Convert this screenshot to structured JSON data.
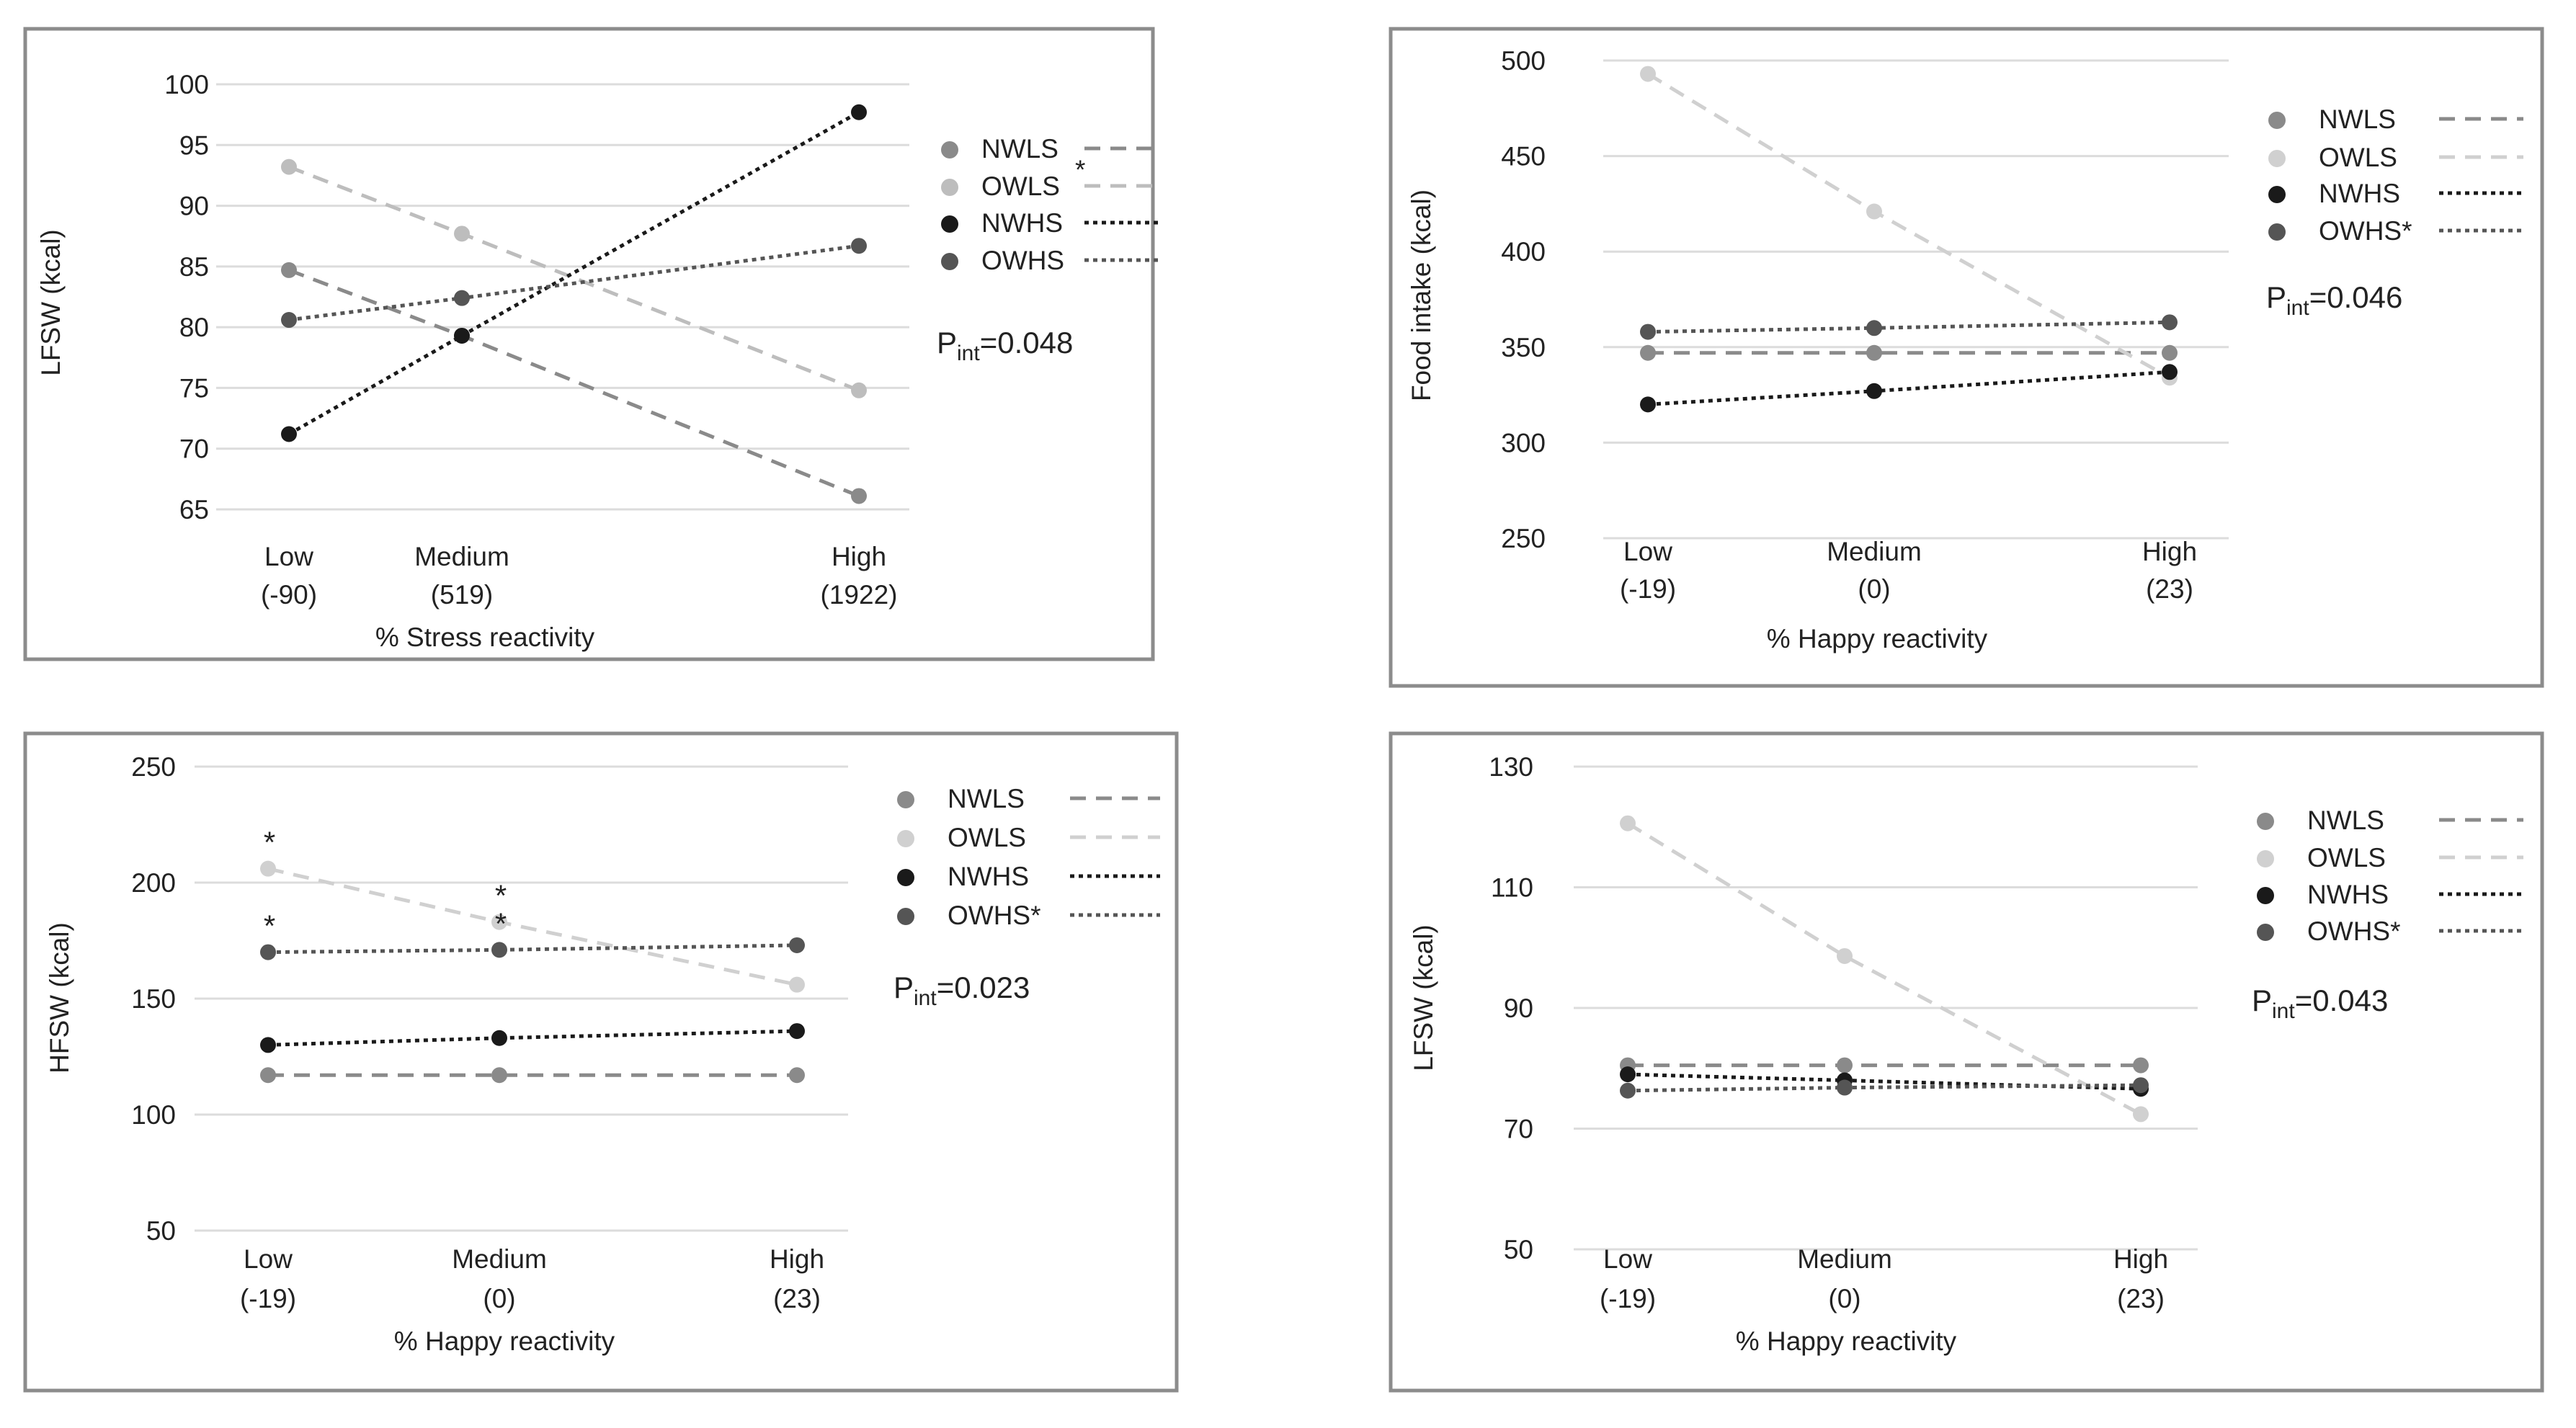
{
  "chart_data": [
    {
      "type": "line",
      "ylabel": "LFSW (kcal)",
      "xlabel": "% Stress reactivity",
      "yticks": [
        "100",
        "95",
        "90",
        "85",
        "80",
        "75",
        "70",
        "65"
      ],
      "ylim": [
        65,
        100
      ],
      "categories": [
        {
          "name": "Low",
          "value": "(-90)"
        },
        {
          "name": "Medium",
          "value": "(519)"
        },
        {
          "name": "High",
          "value": "(1922)"
        }
      ],
      "series": [
        {
          "name": "NWLS",
          "legend_label": "NWLS",
          "values": [
            84.7,
            79.3,
            66.1
          ],
          "color": "#8a8a8a",
          "dash": "dashed"
        },
        {
          "name": "OWLS",
          "legend_label": "OWLS",
          "values": [
            93.2,
            87.7,
            74.8
          ],
          "color": "#bdbdbd",
          "dash": "dashed"
        },
        {
          "name": "NWHS",
          "legend_label": "NWHS",
          "values": [
            71.2,
            79.3,
            97.7
          ],
          "color": "#1a1a1a",
          "dash": "dotted"
        },
        {
          "name": "OWHS",
          "legend_label": "OWHS",
          "values": [
            80.6,
            82.4,
            86.7
          ],
          "color": "#555555",
          "dash": "dotted"
        }
      ],
      "legend_star": "*",
      "p_label": "P",
      "p_sub": "int",
      "p_value": "=0.048",
      "annotations": []
    },
    {
      "type": "line",
      "ylabel": "Food intake (kcal)",
      "xlabel": "% Happy reactivity",
      "yticks": [
        "500",
        "450",
        "400",
        "350",
        "300",
        "250"
      ],
      "ylim": [
        250,
        500
      ],
      "categories": [
        {
          "name": "Low",
          "value": "(-19)"
        },
        {
          "name": "Medium",
          "value": "(0)"
        },
        {
          "name": "High",
          "value": "(23)"
        }
      ],
      "series": [
        {
          "name": "NWLS",
          "legend_label": "NWLS",
          "values": [
            347,
            347,
            347
          ],
          "color": "#8a8a8a",
          "dash": "dashed"
        },
        {
          "name": "OWLS",
          "legend_label": "OWLS",
          "values": [
            493,
            421,
            334
          ],
          "color": "#d0d0d0",
          "dash": "dashed"
        },
        {
          "name": "NWHS",
          "legend_label": "NWHS",
          "values": [
            320,
            327,
            337
          ],
          "color": "#1a1a1a",
          "dash": "dotted"
        },
        {
          "name": "OWHS",
          "legend_label": "OWHS*",
          "values": [
            358,
            360,
            363
          ],
          "color": "#555555",
          "dash": "dotted"
        }
      ],
      "legend_star": "",
      "p_label": "P",
      "p_sub": "int",
      "p_value": "=0.046",
      "annotations": []
    },
    {
      "type": "line",
      "ylabel": "HFSW (kcal)",
      "xlabel": "% Happy reactivity",
      "yticks": [
        "250",
        "200",
        "150",
        "100",
        "50"
      ],
      "ylim": [
        50,
        250
      ],
      "categories": [
        {
          "name": "Low",
          "value": "(-19)"
        },
        {
          "name": "Medium",
          "value": "(0)"
        },
        {
          "name": "High",
          "value": "(23)"
        }
      ],
      "series": [
        {
          "name": "NWLS",
          "legend_label": "NWLS",
          "values": [
            117,
            117,
            117
          ],
          "color": "#8a8a8a",
          "dash": "dashed"
        },
        {
          "name": "OWLS",
          "legend_label": "OWLS",
          "values": [
            206,
            183,
            156
          ],
          "color": "#d0d0d0",
          "dash": "dashed"
        },
        {
          "name": "NWHS",
          "legend_label": "NWHS",
          "values": [
            130,
            133,
            136
          ],
          "color": "#1a1a1a",
          "dash": "dotted"
        },
        {
          "name": "OWHS",
          "legend_label": "OWHS*",
          "values": [
            170,
            171,
            173
          ],
          "color": "#555555",
          "dash": "dotted"
        }
      ],
      "legend_star": "",
      "p_label": "P",
      "p_sub": "int",
      "p_value": "=0.023",
      "annotations": [
        {
          "text": "*",
          "cat": 0,
          "value": 206
        },
        {
          "text": "*",
          "cat": 0,
          "value": 170
        },
        {
          "text": "*",
          "cat": 1,
          "value": 183
        },
        {
          "text": "*",
          "cat": 1,
          "value": 171
        }
      ]
    },
    {
      "type": "line",
      "ylabel": "LFSW (kcal)",
      "xlabel": "% Happy reactivity",
      "yticks": [
        "130",
        "110",
        "90",
        "70",
        "50"
      ],
      "ylim": [
        50,
        130
      ],
      "categories": [
        {
          "name": "Low",
          "value": "(-19)"
        },
        {
          "name": "Medium",
          "value": "(0)"
        },
        {
          "name": "High",
          "value": "(23)"
        }
      ],
      "series": [
        {
          "name": "NWLS",
          "legend_label": "NWLS",
          "values": [
            80.5,
            80.5,
            80.5
          ],
          "color": "#8a8a8a",
          "dash": "dashed"
        },
        {
          "name": "OWLS",
          "legend_label": "OWLS",
          "values": [
            120.6,
            98.6,
            72.4
          ],
          "color": "#d0d0d0",
          "dash": "dashed"
        },
        {
          "name": "NWHS",
          "legend_label": "NWHS",
          "values": [
            79.0,
            78.0,
            76.6
          ],
          "color": "#1a1a1a",
          "dash": "dotted"
        },
        {
          "name": "OWHS",
          "legend_label": "OWHS*",
          "values": [
            76.3,
            76.8,
            77.2
          ],
          "color": "#555555",
          "dash": "dotted"
        }
      ],
      "legend_star": "",
      "p_label": "P",
      "p_sub": "int",
      "p_value": "=0.043",
      "annotations": []
    }
  ]
}
